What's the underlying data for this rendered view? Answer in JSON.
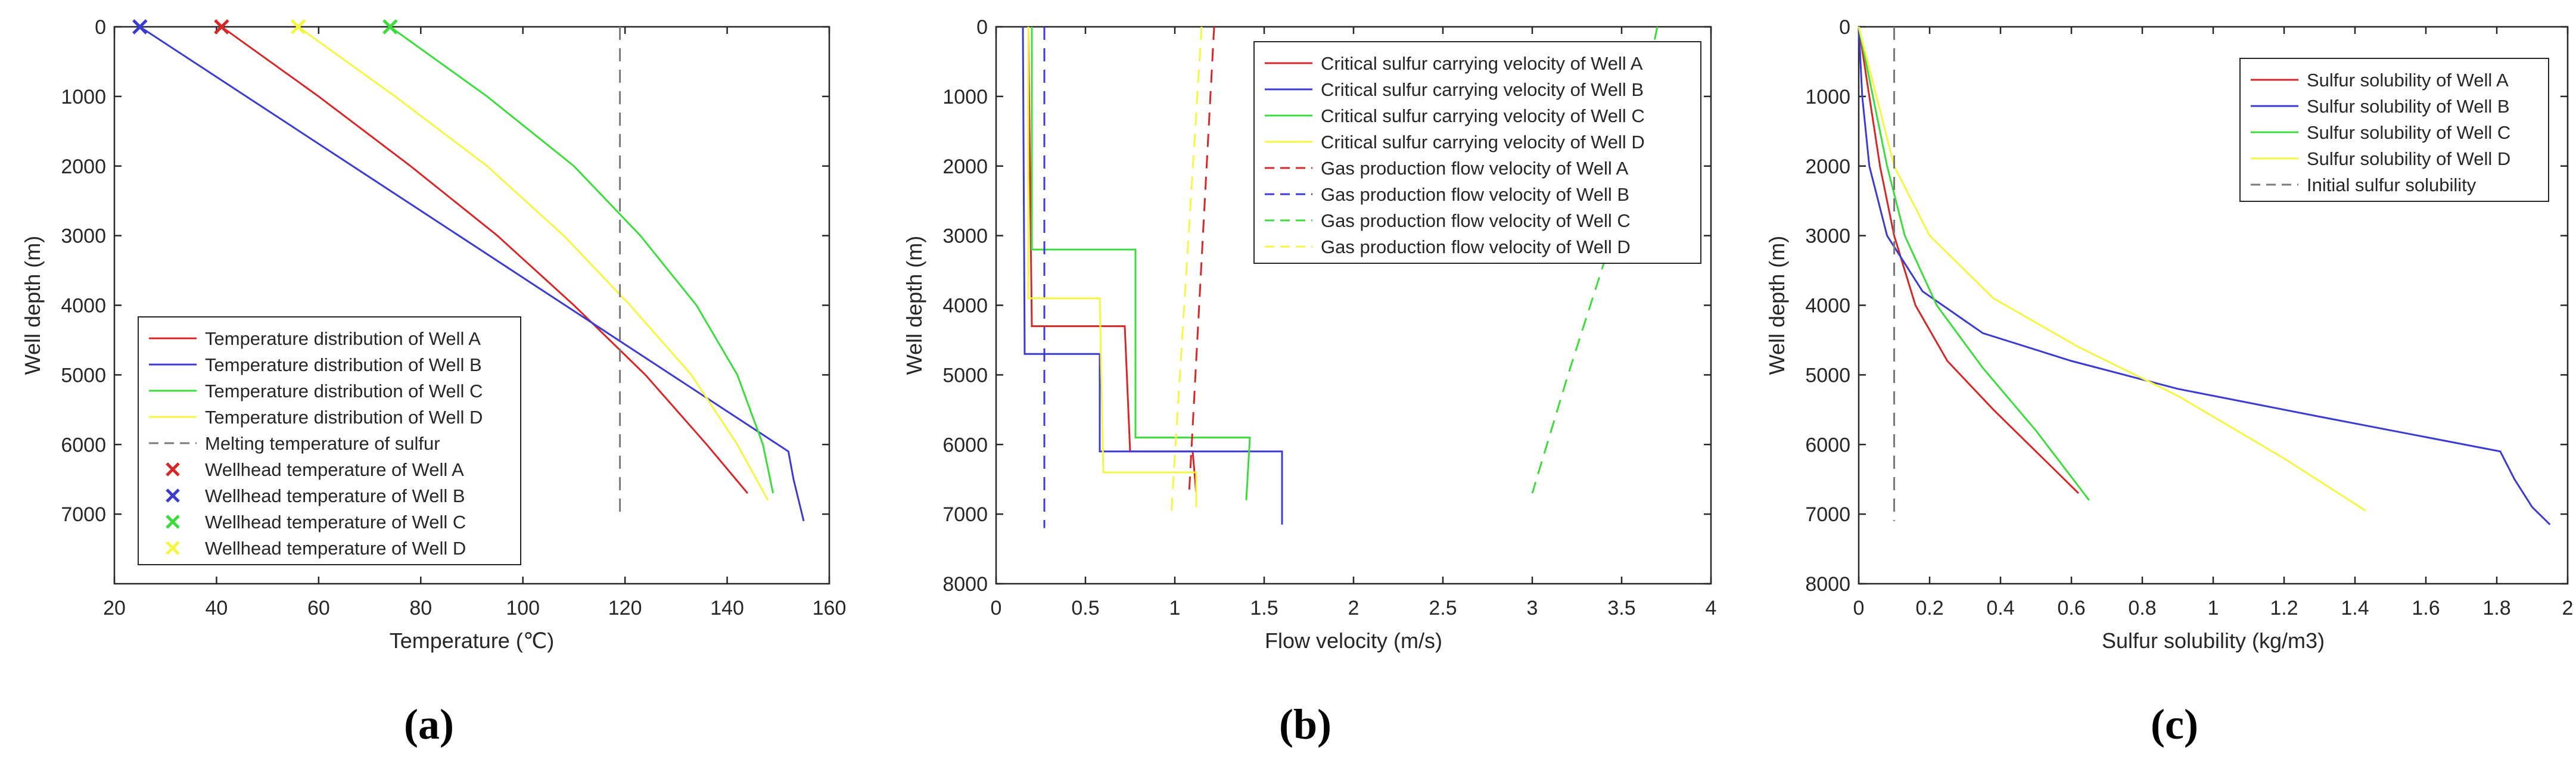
{
  "captions": [
    "(a)",
    "(b)",
    "(c)"
  ],
  "colors": {
    "A": "#d62728",
    "B": "#3b3bd0",
    "C": "#3ddc3d",
    "D": "#f5f542",
    "melt": "#7a7a7a",
    "axis": "#262626"
  },
  "chart_data": [
    {
      "id": "a",
      "type": "line",
      "xlabel": "Temperature (℃)",
      "ylabel": "Well depth (m)",
      "xlim": [
        20,
        160
      ],
      "ylim": [
        0,
        8000
      ],
      "xticks": [
        20,
        40,
        60,
        80,
        100,
        120,
        140,
        160
      ],
      "yticks": [
        0,
        1000,
        2000,
        3000,
        4000,
        5000,
        6000,
        7000
      ],
      "legend_position": "bottom-left",
      "series": [
        {
          "name": "Temperature distribution of Well A",
          "well": "A",
          "style": "solid",
          "points": [
            [
              41,
              0
            ],
            [
              60,
              1000
            ],
            [
              78,
              2000
            ],
            [
              95,
              3000
            ],
            [
              110,
              4000
            ],
            [
              124,
              5000
            ],
            [
              136,
              6000
            ],
            [
              144,
              6700
            ]
          ]
        },
        {
          "name": "Temperature distribution of Well B",
          "well": "B",
          "style": "solid",
          "points": [
            [
              25,
              0
            ],
            [
              152,
              6100
            ],
            [
              153,
              6500
            ],
            [
              155,
              7100
            ]
          ]
        },
        {
          "name": "Temperature distribution of Well C",
          "well": "C",
          "style": "solid",
          "points": [
            [
              74,
              0
            ],
            [
              93,
              1000
            ],
            [
              110,
              2000
            ],
            [
              123,
              3000
            ],
            [
              134,
              4000
            ],
            [
              142,
              5000
            ],
            [
              147,
              6000
            ],
            [
              149,
              6700
            ]
          ]
        },
        {
          "name": "Temperature distribution of Well D",
          "well": "D",
          "style": "solid",
          "points": [
            [
              56,
              0
            ],
            [
              75,
              1000
            ],
            [
              93,
              2000
            ],
            [
              108,
              3000
            ],
            [
              121,
              4000
            ],
            [
              133,
              5000
            ],
            [
              142,
              6000
            ],
            [
              148,
              6800
            ]
          ]
        },
        {
          "name": "Melting temperature of sulfur",
          "well": "melt",
          "style": "dashed",
          "points": [
            [
              119,
              0
            ],
            [
              119,
              7000
            ]
          ]
        }
      ],
      "markers": [
        {
          "name": "Wellhead temperature of Well A",
          "well": "A",
          "x": 41,
          "y": 0
        },
        {
          "name": "Wellhead temperature of Well B",
          "well": "B",
          "x": 25,
          "y": 0
        },
        {
          "name": "Wellhead temperature of Well C",
          "well": "C",
          "x": 74,
          "y": 0
        },
        {
          "name": "Wellhead temperature of Well D",
          "well": "D",
          "x": 56,
          "y": 0
        }
      ]
    },
    {
      "id": "b",
      "type": "line",
      "xlabel": "Flow velocity (m/s)",
      "ylabel": "Well depth (m)",
      "xlim": [
        0,
        4
      ],
      "ylim": [
        0,
        8000
      ],
      "xticks": [
        0,
        0.5,
        1,
        1.5,
        2,
        2.5,
        3,
        3.5,
        4
      ],
      "yticks": [
        0,
        1000,
        2000,
        3000,
        4000,
        5000,
        6000,
        7000,
        8000
      ],
      "legend_position": "top-right",
      "series": [
        {
          "name": "Critical sulfur carrying velocity of Well A",
          "well": "A",
          "style": "solid",
          "points": [
            [
              0.18,
              0
            ],
            [
              0.2,
              4300
            ],
            [
              0.72,
              4300
            ],
            [
              0.75,
              6100
            ],
            [
              1.1,
              6100
            ],
            [
              1.12,
              6700
            ]
          ]
        },
        {
          "name": "Critical sulfur carrying velocity of Well B",
          "well": "B",
          "style": "solid",
          "points": [
            [
              0.15,
              0
            ],
            [
              0.16,
              4700
            ],
            [
              0.58,
              4700
            ],
            [
              0.58,
              6100
            ],
            [
              1.6,
              6100
            ],
            [
              1.6,
              7150
            ]
          ]
        },
        {
          "name": "Critical sulfur carrying velocity of Well C",
          "well": "C",
          "style": "solid",
          "points": [
            [
              0.2,
              0
            ],
            [
              0.2,
              3200
            ],
            [
              0.78,
              3200
            ],
            [
              0.78,
              5900
            ],
            [
              1.42,
              5900
            ],
            [
              1.4,
              6800
            ]
          ]
        },
        {
          "name": "Critical sulfur carrying velocity of Well D",
          "well": "D",
          "style": "solid",
          "points": [
            [
              0.18,
              0
            ],
            [
              0.18,
              3900
            ],
            [
              0.58,
              3900
            ],
            [
              0.6,
              6400
            ],
            [
              1.12,
              6400
            ],
            [
              1.12,
              6900
            ]
          ]
        },
        {
          "name": "Gas production flow velocity of Well A",
          "well": "A",
          "style": "dashed",
          "points": [
            [
              1.22,
              0
            ],
            [
              1.08,
              6700
            ]
          ]
        },
        {
          "name": "Gas production flow velocity of Well B",
          "well": "B",
          "style": "dashed",
          "points": [
            [
              0.27,
              0
            ],
            [
              0.27,
              7200
            ]
          ]
        },
        {
          "name": "Gas production flow velocity of Well C",
          "well": "C",
          "style": "dashed",
          "points": [
            [
              3.7,
              0
            ],
            [
              3.45,
              3000
            ],
            [
              3.2,
              5000
            ],
            [
              3.0,
              6700
            ]
          ]
        },
        {
          "name": "Gas production flow velocity of Well D",
          "well": "D",
          "style": "dashed",
          "points": [
            [
              1.15,
              0
            ],
            [
              0.98,
              7000
            ]
          ]
        }
      ]
    },
    {
      "id": "c",
      "type": "line",
      "xlabel": "Sulfur solubility (kg/m3)",
      "ylabel": "Well depth (m)",
      "xlim": [
        0,
        2
      ],
      "ylim": [
        0,
        8000
      ],
      "xticks": [
        0,
        0.2,
        0.4,
        0.6,
        0.8,
        1,
        1.2,
        1.4,
        1.6,
        1.8,
        2
      ],
      "yticks": [
        0,
        1000,
        2000,
        3000,
        4000,
        5000,
        6000,
        7000,
        8000
      ],
      "legend_position": "top-right",
      "series": [
        {
          "name": "Sulfur solubility of Well A",
          "well": "A",
          "style": "solid",
          "points": [
            [
              0,
              0
            ],
            [
              0.03,
              1000
            ],
            [
              0.06,
              2000
            ],
            [
              0.1,
              3000
            ],
            [
              0.16,
              4000
            ],
            [
              0.25,
              4800
            ],
            [
              0.38,
              5500
            ],
            [
              0.5,
              6100
            ],
            [
              0.62,
              6700
            ]
          ]
        },
        {
          "name": "Sulfur solubility of Well B",
          "well": "B",
          "style": "solid",
          "points": [
            [
              0,
              0
            ],
            [
              0.01,
              1000
            ],
            [
              0.03,
              2000
            ],
            [
              0.08,
              3000
            ],
            [
              0.18,
              3800
            ],
            [
              0.35,
              4400
            ],
            [
              0.6,
              4800
            ],
            [
              0.9,
              5200
            ],
            [
              1.3,
              5600
            ],
            [
              1.81,
              6100
            ],
            [
              1.85,
              6500
            ],
            [
              1.9,
              6900
            ],
            [
              1.95,
              7150
            ]
          ]
        },
        {
          "name": "Sulfur solubility of Well C",
          "well": "C",
          "style": "solid",
          "points": [
            [
              0,
              0
            ],
            [
              0.04,
              1000
            ],
            [
              0.08,
              2000
            ],
            [
              0.13,
              3000
            ],
            [
              0.22,
              4000
            ],
            [
              0.35,
              4900
            ],
            [
              0.5,
              5800
            ],
            [
              0.65,
              6800
            ]
          ]
        },
        {
          "name": "Sulfur solubility of Well D",
          "well": "D",
          "style": "solid",
          "points": [
            [
              0,
              0
            ],
            [
              0.05,
              1000
            ],
            [
              0.1,
              2000
            ],
            [
              0.2,
              3000
            ],
            [
              0.38,
              3900
            ],
            [
              0.62,
              4600
            ],
            [
              0.9,
              5300
            ],
            [
              1.2,
              6200
            ],
            [
              1.43,
              6950
            ]
          ]
        },
        {
          "name": "Initial sulfur solubility",
          "well": "melt",
          "style": "dashed",
          "points": [
            [
              0.1,
              0
            ],
            [
              0.1,
              7100
            ]
          ]
        }
      ]
    }
  ]
}
